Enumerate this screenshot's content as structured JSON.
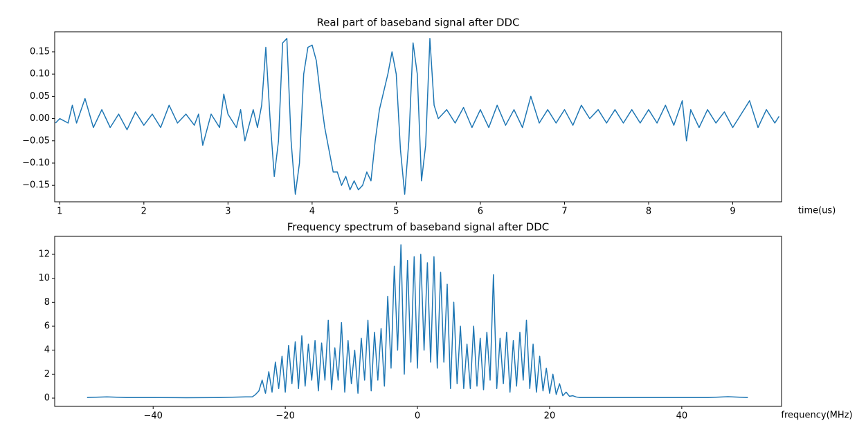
{
  "chart_data": [
    {
      "type": "line",
      "title": "Real part of baseband signal after DDC",
      "x_label": "time(us)",
      "color": "#1f77b4",
      "x": [
        0.95,
        1.0,
        1.1,
        1.15,
        1.2,
        1.3,
        1.4,
        1.5,
        1.6,
        1.7,
        1.8,
        1.9,
        2.0,
        2.1,
        2.2,
        2.3,
        2.4,
        2.5,
        2.6,
        2.65,
        2.7,
        2.8,
        2.9,
        2.95,
        3.0,
        3.1,
        3.15,
        3.2,
        3.3,
        3.35,
        3.4,
        3.45,
        3.5,
        3.55,
        3.6,
        3.65,
        3.7,
        3.75,
        3.8,
        3.85,
        3.9,
        3.95,
        4.0,
        4.05,
        4.1,
        4.15,
        4.2,
        4.25,
        4.3,
        4.35,
        4.4,
        4.45,
        4.5,
        4.55,
        4.6,
        4.65,
        4.7,
        4.75,
        4.8,
        4.85,
        4.9,
        4.95,
        5.0,
        5.05,
        5.1,
        5.15,
        5.2,
        5.25,
        5.3,
        5.35,
        5.4,
        5.45,
        5.5,
        5.6,
        5.7,
        5.8,
        5.9,
        6.0,
        6.1,
        6.2,
        6.3,
        6.4,
        6.5,
        6.6,
        6.7,
        6.8,
        6.9,
        7.0,
        7.1,
        7.2,
        7.3,
        7.4,
        7.5,
        7.6,
        7.7,
        7.8,
        7.9,
        8.0,
        8.1,
        8.2,
        8.3,
        8.4,
        8.45,
        8.5,
        8.6,
        8.7,
        8.8,
        8.9,
        9.0,
        9.1,
        9.2,
        9.3,
        9.4,
        9.5,
        9.55
      ],
      "values": [
        -0.01,
        0.0,
        -0.01,
        0.03,
        -0.01,
        0.045,
        -0.02,
        0.02,
        -0.02,
        0.01,
        -0.025,
        0.015,
        -0.015,
        0.01,
        -0.02,
        0.03,
        -0.01,
        0.01,
        -0.015,
        0.01,
        -0.06,
        0.01,
        -0.02,
        0.055,
        0.01,
        -0.02,
        0.02,
        -0.05,
        0.02,
        -0.02,
        0.03,
        0.16,
        0.0,
        -0.13,
        -0.05,
        0.17,
        0.18,
        -0.05,
        -0.17,
        -0.1,
        0.1,
        0.16,
        0.165,
        0.13,
        0.05,
        -0.02,
        -0.07,
        -0.12,
        -0.12,
        -0.15,
        -0.13,
        -0.16,
        -0.14,
        -0.16,
        -0.15,
        -0.12,
        -0.14,
        -0.05,
        0.02,
        0.06,
        0.1,
        0.15,
        0.1,
        -0.07,
        -0.17,
        -0.05,
        0.17,
        0.1,
        -0.14,
        -0.06,
        0.18,
        0.03,
        0.0,
        0.02,
        -0.01,
        0.025,
        -0.02,
        0.02,
        -0.02,
        0.03,
        -0.015,
        0.02,
        -0.02,
        0.05,
        -0.01,
        0.02,
        -0.01,
        0.02,
        -0.015,
        0.03,
        0.0,
        0.02,
        -0.01,
        0.02,
        -0.01,
        0.02,
        -0.01,
        0.02,
        -0.01,
        0.03,
        -0.015,
        0.04,
        -0.05,
        0.02,
        -0.02,
        0.02,
        -0.01,
        0.015,
        -0.02,
        0.01,
        0.04,
        -0.02,
        0.02,
        -0.01,
        0.005
      ],
      "xlim": [
        0.94,
        9.58
      ],
      "ylim": [
        -0.187,
        0.195
      ],
      "xticks": [
        1,
        2,
        3,
        4,
        5,
        6,
        7,
        8,
        9
      ],
      "yticks": [
        {
          "value": -0.15,
          "label": "−0.15"
        },
        {
          "value": -0.1,
          "label": "−0.10"
        },
        {
          "value": -0.05,
          "label": "−0.05"
        },
        {
          "value": 0,
          "label": "0.00"
        },
        {
          "value": 0.05,
          "label": "0.05"
        },
        {
          "value": 0.1,
          "label": "0.10"
        },
        {
          "value": 0.15,
          "label": "0.15"
        }
      ]
    },
    {
      "type": "line",
      "title": "Frequency spectrum of baseband signal after DDC",
      "x_label": "frequency(MHz)",
      "color": "#1f77b4",
      "x": [
        -50,
        -47,
        -44,
        -40,
        -35,
        -30,
        -26,
        -25,
        -24.5,
        -24,
        -23.5,
        -23,
        -22.5,
        -22,
        -21.5,
        -21,
        -20.5,
        -20,
        -19.5,
        -19,
        -18.5,
        -18,
        -17.5,
        -17,
        -16.5,
        -16,
        -15.5,
        -15,
        -14.5,
        -14,
        -13.5,
        -13,
        -12.5,
        -12,
        -11.5,
        -11,
        -10.5,
        -10,
        -9.5,
        -9,
        -8.5,
        -8,
        -7.5,
        -7,
        -6.5,
        -6,
        -5.5,
        -5,
        -4.5,
        -4,
        -3.5,
        -3,
        -2.5,
        -2,
        -1.5,
        -1,
        -0.5,
        0,
        0.5,
        1,
        1.5,
        2,
        2.5,
        3,
        3.5,
        4,
        4.5,
        5,
        5.5,
        6,
        6.5,
        7,
        7.5,
        8,
        8.5,
        9,
        9.5,
        10,
        10.5,
        11,
        11.5,
        12,
        12.5,
        13,
        13.5,
        14,
        14.5,
        15,
        15.5,
        16,
        16.5,
        17,
        17.5,
        18,
        18.5,
        19,
        19.5,
        20,
        20.5,
        21,
        21.5,
        22,
        22.5,
        23,
        23.5,
        24,
        24.5,
        25,
        26,
        30,
        35,
        40,
        44,
        47,
        50
      ],
      "values": [
        0.05,
        0.1,
        0.05,
        0.05,
        0.03,
        0.05,
        0.1,
        0.1,
        0.3,
        0.6,
        1.5,
        0.4,
        2.2,
        0.5,
        3,
        0.8,
        3.5,
        0.5,
        4.4,
        1.2,
        4.7,
        0.8,
        5.2,
        1,
        4.5,
        1.5,
        4.8,
        0.6,
        4.6,
        1.5,
        6.5,
        0.7,
        4.2,
        1.5,
        6.3,
        0.5,
        4.8,
        1.2,
        4,
        0.4,
        5,
        1.5,
        6.5,
        0.6,
        5.5,
        1.5,
        5.8,
        1,
        8.5,
        2.5,
        11,
        4,
        12.8,
        2,
        11.5,
        3,
        11.8,
        2.5,
        12,
        4,
        11.3,
        3,
        11.8,
        2.5,
        10.5,
        3,
        9.5,
        0.8,
        8,
        1.2,
        6,
        0.8,
        4.5,
        0.8,
        6,
        1,
        5,
        0.7,
        5.5,
        1.5,
        10.3,
        0.8,
        5,
        1.2,
        5.5,
        0.5,
        4.8,
        1,
        5.5,
        1.5,
        6.5,
        0.8,
        4.5,
        0.5,
        3.5,
        0.6,
        2.5,
        0.4,
        2,
        0.3,
        1.2,
        0.2,
        0.5,
        0.15,
        0.2,
        0.1,
        0.05,
        0.05,
        0.05,
        0.05,
        0.05,
        0.05,
        0.05,
        0.12,
        0.05
      ],
      "xlim": [
        -54.9,
        55.1
      ],
      "ylim": [
        -0.69,
        13.5
      ],
      "xticks": [
        {
          "value": -40,
          "label": "−40"
        },
        {
          "value": -20,
          "label": "−20"
        },
        0,
        20,
        40
      ],
      "yticks": [
        0,
        2,
        4,
        6,
        8,
        10,
        12
      ]
    }
  ]
}
